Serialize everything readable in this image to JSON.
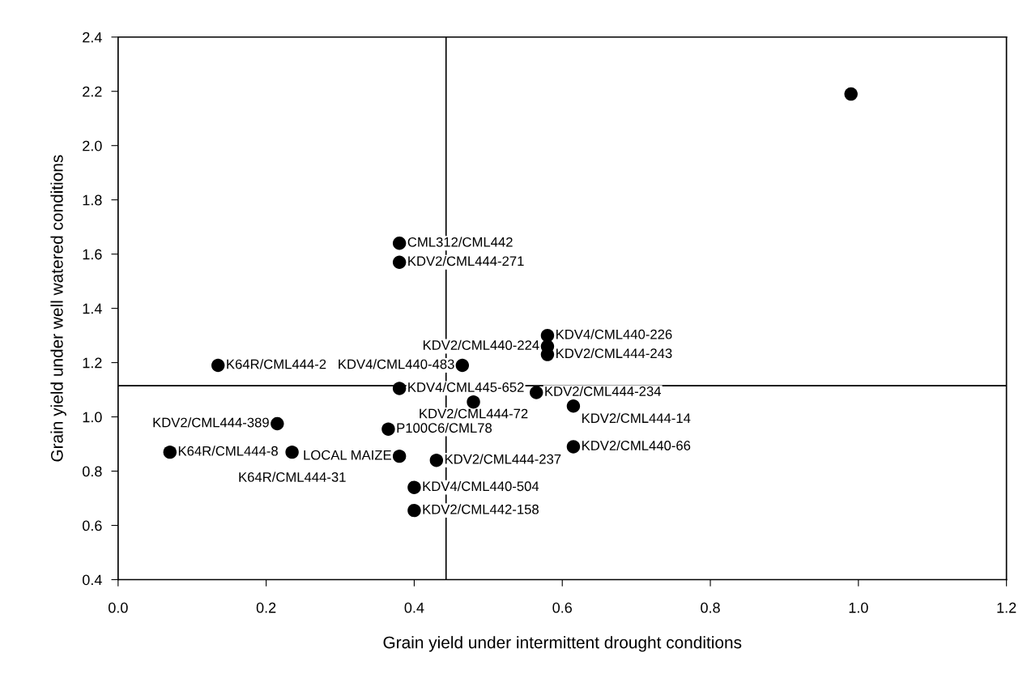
{
  "chart_data": {
    "type": "scatter",
    "xlabel": "Grain yield under intermittent drought conditions",
    "ylabel": "Grain yield under well watered conditions",
    "series": [
      {
        "color": "#000000",
        "marker": "circle",
        "x": [
          0.99,
          0.38,
          0.38,
          0.58,
          0.58,
          0.58,
          0.465,
          0.135,
          0.38,
          0.565,
          0.48,
          0.615,
          0.215,
          0.365,
          0.615,
          0.07,
          0.235,
          0.38,
          0.43,
          0.4,
          0.4
        ],
        "values": [
          2.19,
          1.64,
          1.57,
          1.3,
          1.26,
          1.23,
          1.19,
          1.19,
          1.105,
          1.09,
          1.055,
          1.04,
          0.975,
          0.955,
          0.89,
          0.87,
          0.87,
          0.855,
          0.84,
          0.74,
          0.655
        ]
      }
    ],
    "annotations": [
      {
        "text": "CML312/CML442",
        "x": 0.38,
        "y": 1.64
      },
      {
        "text": "KDV2/CML444-271",
        "x": 0.38,
        "y": 1.57
      },
      {
        "text": "KDV4/CML440-226",
        "x": 0.58,
        "y": 1.3
      },
      {
        "text": "KDV2/CML440-224",
        "x": 0.58,
        "y": 1.26
      },
      {
        "text": "KDV2/CML444-243",
        "x": 0.58,
        "y": 1.23
      },
      {
        "text": "KDV4/CML440-483",
        "x": 0.465,
        "y": 1.19
      },
      {
        "text": "K64R/CML444-2",
        "x": 0.135,
        "y": 1.19
      },
      {
        "text": "KDV4/CML445-652",
        "x": 0.38,
        "y": 1.105
      },
      {
        "text": "KDV2/CML444-234",
        "x": 0.565,
        "y": 1.09
      },
      {
        "text": "KDV2/CML444-72",
        "x": 0.48,
        "y": 1.055
      },
      {
        "text": "KDV2/CML444-14",
        "x": 0.615,
        "y": 1.04
      },
      {
        "text": "KDV2/CML444-389",
        "x": 0.215,
        "y": 0.975
      },
      {
        "text": "P100C6/CML78",
        "x": 0.365,
        "y": 0.955
      },
      {
        "text": "KDV2/CML440-66",
        "x": 0.615,
        "y": 0.89
      },
      {
        "text": "K64R/CML444-8",
        "x": 0.07,
        "y": 0.87
      },
      {
        "text": "K64R/CML444-31",
        "x": 0.235,
        "y": 0.87
      },
      {
        "text": "LOCAL MAIZE",
        "x": 0.38,
        "y": 0.855
      },
      {
        "text": "KDV2/CML444-237",
        "x": 0.43,
        "y": 0.84
      },
      {
        "text": "KDV4/CML440-504",
        "x": 0.4,
        "y": 0.74
      },
      {
        "text": "KDV2/CML442-158",
        "x": 0.4,
        "y": 0.655
      }
    ],
    "ref_lines": [
      {
        "axis": "x",
        "value": 0.443,
        "color": "#000000",
        "line_style": "solid"
      },
      {
        "axis": "y",
        "value": 1.115,
        "color": "#000000",
        "line_style": "solid"
      }
    ],
    "xlim": [
      0,
      1.2
    ],
    "xticks": [
      {
        "value": 0,
        "label": "0.0"
      },
      0.2,
      0.4,
      0.6,
      0.8,
      {
        "value": 1,
        "label": "1.0"
      },
      1.2
    ],
    "ylim": [
      0.4,
      2.4
    ],
    "yticks": [
      0.4,
      0.6,
      0.8,
      {
        "value": 1,
        "label": "1.0"
      },
      1.2,
      1.4,
      1.6,
      1.8,
      {
        "value": 2,
        "label": "2.0"
      },
      2.2,
      2.4
    ],
    "grid": false,
    "legend": false
  }
}
